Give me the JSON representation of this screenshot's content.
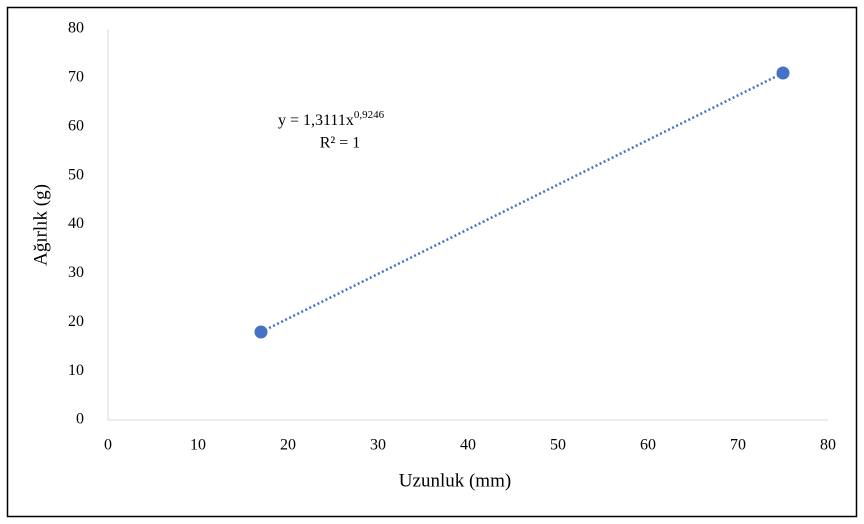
{
  "chart_data": {
    "type": "scatter",
    "x_label": "Uzunluk (mm)",
    "y_label": "Ağırlık (g)",
    "series": [
      {
        "x": [
          17,
          75
        ],
        "values": [
          18,
          71
        ],
        "color": "#4472c4"
      }
    ],
    "trendline": {
      "style": "dotted"
    },
    "equation": {
      "base": "y = 1,3111x",
      "exponent": "0,9246"
    },
    "r_squared": "R² = 1",
    "xlim": [
      0,
      80
    ],
    "xticks": [
      0,
      10,
      20,
      30,
      40,
      50,
      60,
      70,
      80
    ],
    "ylim": [
      0,
      80
    ],
    "yticks": [
      0,
      10,
      20,
      30,
      40,
      50,
      60,
      70,
      80
    ],
    "grid": false
  }
}
